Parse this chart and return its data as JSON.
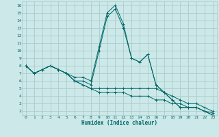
{
  "xlabel": "Humidex (Indice chaleur)",
  "bg_color": "#cce8e8",
  "grid_color": "#aacccc",
  "line_color": "#006666",
  "marker": "+",
  "xlim": [
    -0.5,
    23.5
  ],
  "ylim": [
    1.5,
    16.5
  ],
  "xticks": [
    0,
    1,
    2,
    3,
    4,
    5,
    6,
    7,
    8,
    9,
    10,
    11,
    12,
    13,
    14,
    15,
    16,
    17,
    18,
    19,
    20,
    21,
    22,
    23
  ],
  "yticks": [
    2,
    3,
    4,
    5,
    6,
    7,
    8,
    9,
    10,
    11,
    12,
    13,
    14,
    15,
    16
  ],
  "series": [
    [
      8.0,
      7.0,
      7.5,
      8.0,
      7.5,
      7.0,
      6.5,
      6.5,
      6.0,
      10.5,
      15.0,
      16.0,
      13.5,
      9.0,
      8.5,
      9.5,
      5.5,
      4.5,
      3.5,
      2.5,
      2.5,
      2.5,
      2.0,
      1.5
    ],
    [
      8.0,
      7.0,
      7.5,
      8.0,
      7.5,
      7.0,
      6.0,
      6.0,
      5.5,
      10.0,
      14.5,
      15.5,
      13.0,
      9.0,
      8.5,
      9.5,
      5.5,
      4.5,
      3.5,
      2.5,
      2.5,
      2.5,
      2.0,
      1.5
    ],
    [
      8.0,
      7.0,
      7.5,
      8.0,
      7.5,
      7.0,
      6.0,
      5.5,
      5.0,
      5.0,
      5.0,
      5.0,
      5.0,
      5.0,
      5.0,
      5.0,
      5.0,
      4.5,
      4.0,
      3.5,
      3.0,
      3.0,
      2.5,
      2.0
    ],
    [
      8.0,
      7.0,
      7.5,
      8.0,
      7.5,
      7.0,
      6.0,
      5.5,
      5.0,
      4.5,
      4.5,
      4.5,
      4.5,
      4.0,
      4.0,
      4.0,
      3.5,
      3.5,
      3.0,
      3.0,
      2.5,
      2.5,
      2.0,
      1.8
    ]
  ]
}
